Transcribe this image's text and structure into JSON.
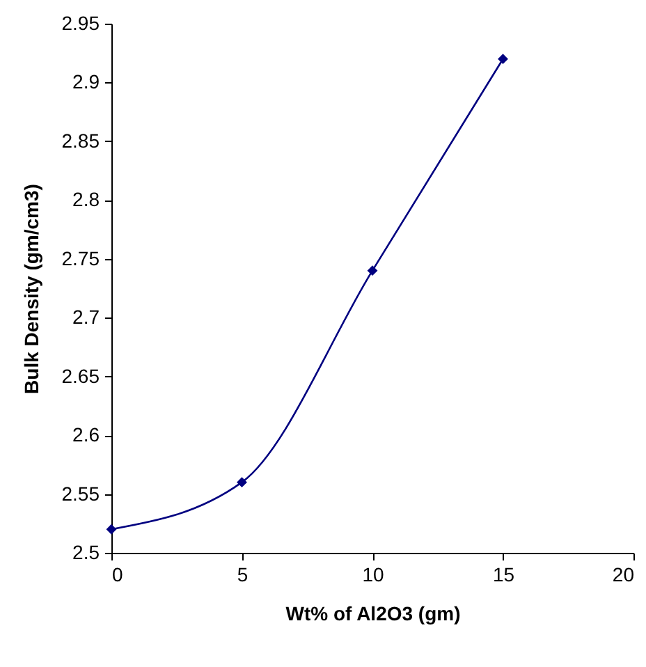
{
  "chart_data": {
    "type": "line",
    "xlabel": "Wt% of Al2O3 (gm)",
    "ylabel": "Bulk Density (gm/cm3)",
    "x": [
      0,
      5,
      10,
      15
    ],
    "series": [
      {
        "color": "#000080",
        "values": [
          2.52,
          2.56,
          2.74,
          2.92
        ]
      }
    ],
    "xlim": [
      0,
      20
    ],
    "xticks": [
      0,
      5,
      10,
      15,
      20
    ],
    "ylim": [
      2.5,
      2.95
    ],
    "yticks": [
      2.5,
      2.55,
      2.6,
      2.65,
      2.7,
      2.75,
      2.8,
      2.85,
      2.9,
      2.95
    ],
    "grid": false,
    "marker": "diamond",
    "line_style": "solid"
  }
}
